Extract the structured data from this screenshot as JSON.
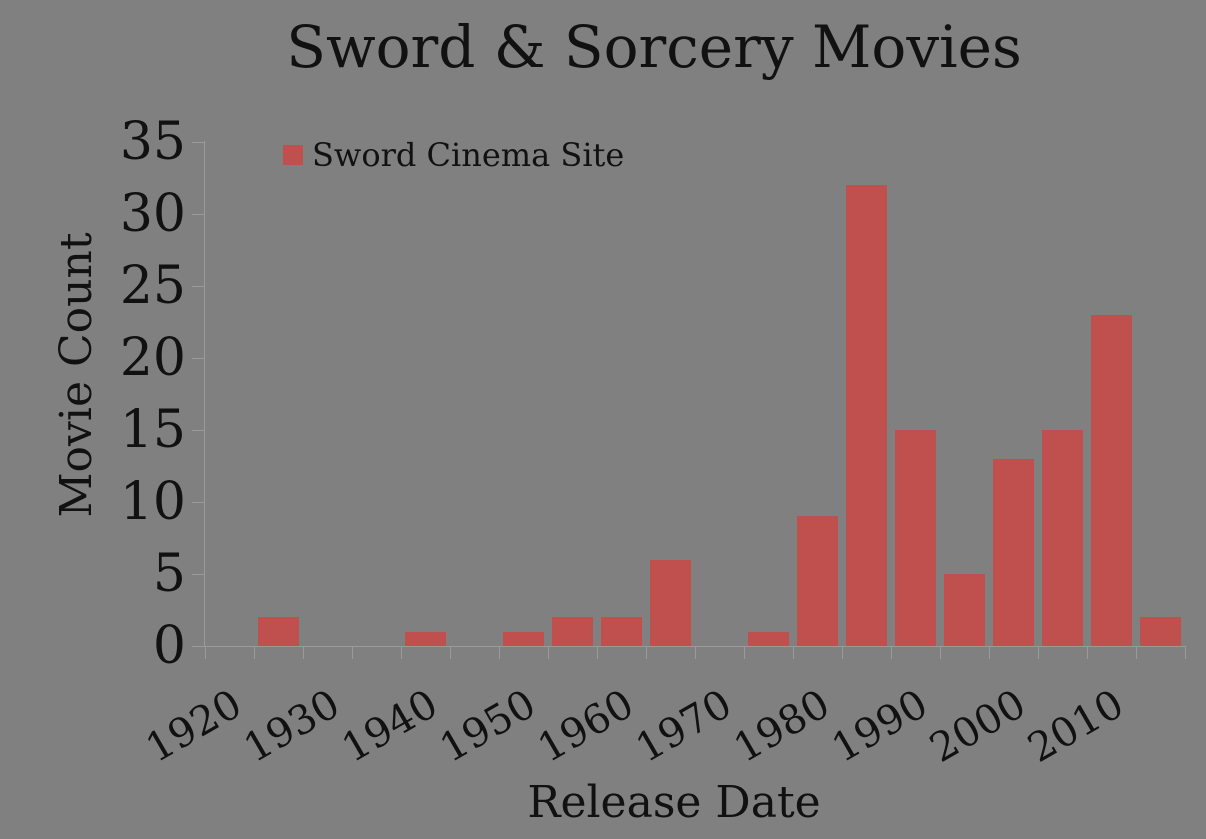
{
  "chart": {
    "title": "Sword & Sorcery Movies",
    "background_color": "#808080",
    "axis_line_color": "#9a9a9a",
    "text_color": "#111111"
  },
  "legend": {
    "label": "Sword Cinema Site",
    "swatch_color": "#c0504d",
    "position": "top-left-inside"
  },
  "y_axis": {
    "title": "Movie Count"
  },
  "x_axis": {
    "title": "Release Date"
  },
  "chart_data": {
    "type": "bar",
    "title": "Sword & Sorcery Movies",
    "xlabel": "Release Date",
    "ylabel": "Movie Count",
    "categories": [
      1920,
      1925,
      1930,
      1935,
      1940,
      1945,
      1950,
      1955,
      1960,
      1965,
      1970,
      1975,
      1980,
      1985,
      1990,
      1995,
      2000,
      2005,
      2010,
      2015
    ],
    "bin_width_years": 5,
    "series": [
      {
        "name": "Sword Cinema Site",
        "color": "#c0504d",
        "values": [
          0,
          2,
          0,
          0,
          1,
          0,
          1,
          2,
          2,
          6,
          0,
          1,
          9,
          32,
          15,
          5,
          13,
          15,
          23,
          2
        ]
      }
    ],
    "ylim": [
      0,
      35
    ],
    "ytick_step": 5,
    "ytick_labels": [
      "0",
      "5",
      "10",
      "15",
      "20",
      "25",
      "30",
      "35"
    ],
    "xtick_labels": [
      "1920",
      "1930",
      "1940",
      "1950",
      "1960",
      "1970",
      "1980",
      "1990",
      "2000",
      "2010"
    ],
    "xtick_label_rotation_deg": -30,
    "grid": false,
    "legend_position": "top-left-inside",
    "background_color": "#808080",
    "bar_color": "#c0504d"
  }
}
